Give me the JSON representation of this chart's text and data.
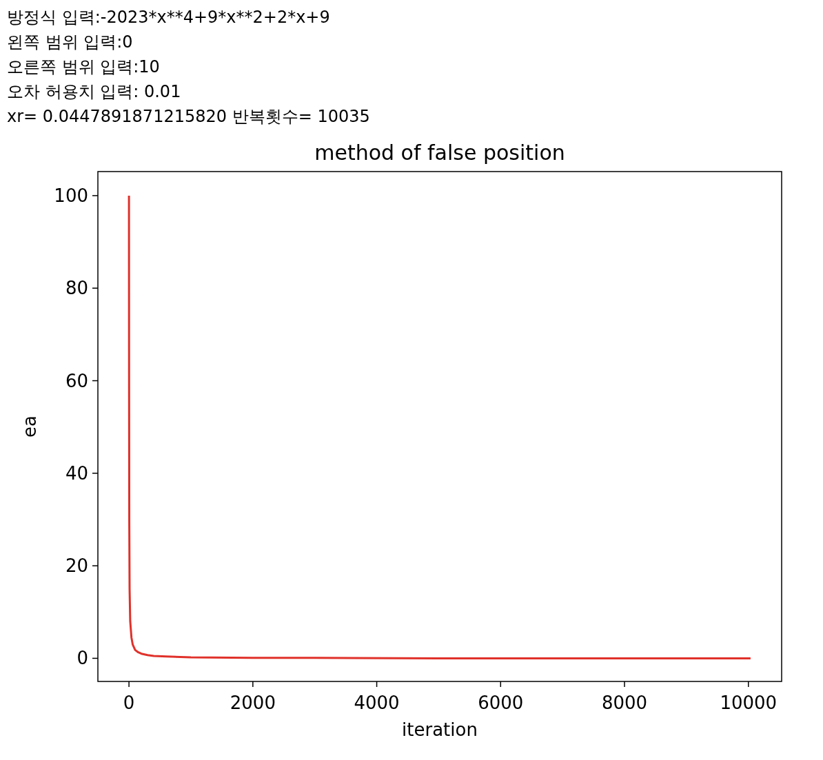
{
  "chart_data": {
    "type": "line",
    "title": "method of false position",
    "xlabel": "iteration",
    "ylabel": "ea",
    "annotations": [
      "방정식 입력:-2023*x**4+9*x**2+2*x+9",
      "왼쪽 범위 입력:0",
      "오른쪽 범위 입력:10",
      "오차 허용치 입력: 0.01",
      "xr= 0.0447891871215820 반복횟수= 10035"
    ],
    "series": [
      {
        "color": "#e0312a",
        "x": [
          0,
          2,
          5,
          10,
          20,
          40,
          60,
          100,
          150,
          200,
          300,
          400,
          600,
          1000,
          2000,
          3000,
          5000,
          7000,
          10035
        ],
        "values": [
          100,
          60,
          30,
          15,
          8,
          4.5,
          3,
          1.8,
          1.3,
          1.0,
          0.7,
          0.5,
          0.4,
          0.2,
          0.1,
          0.1,
          0,
          0,
          0
        ]
      }
    ],
    "xlim": [
      -502,
      10537
    ],
    "ylim": [
      -5,
      105.2
    ],
    "xticks": [
      0,
      2000,
      4000,
      6000,
      8000,
      10000
    ],
    "yticks": [
      0,
      20,
      40,
      60,
      80,
      100
    ],
    "grid": false
  }
}
